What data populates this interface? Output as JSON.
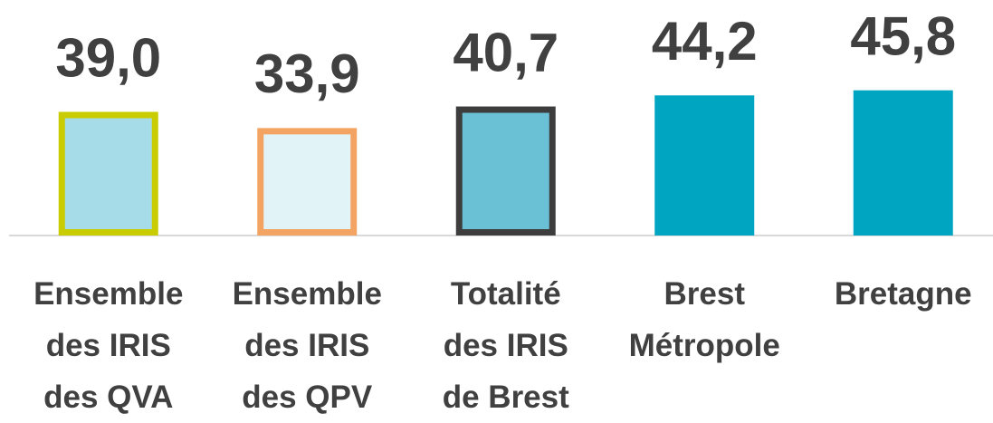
{
  "chart_data": {
    "type": "bar",
    "categories": [
      "Ensemble\ndes IRIS\ndes QVA",
      "Ensemble\ndes IRIS\ndes QPV",
      "Totalité\ndes IRIS\nde Brest",
      "Brest\nMétropole",
      "Bretagne"
    ],
    "values": [
      39.0,
      33.9,
      40.7,
      44.2,
      45.8
    ],
    "value_labels": [
      "39,0",
      "33,9",
      "40,7",
      "44,2",
      "45,8"
    ],
    "colors": [
      "#a6dbe8",
      "#e2f3f8",
      "#6ac0d5",
      "#00a5c2",
      "#00a5c2"
    ],
    "edgecolors": [
      "#c8cc00",
      "#f4a462",
      "#3d3d3d",
      null,
      null
    ],
    "ylim": [
      0,
      50
    ]
  }
}
